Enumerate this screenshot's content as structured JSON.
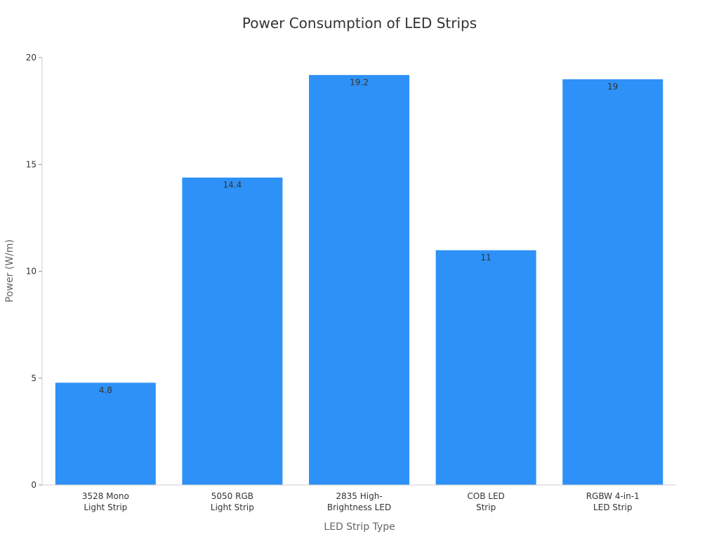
{
  "chart_data": {
    "type": "bar",
    "title": "Power Consumption of LED Strips",
    "xlabel": "LED Strip Type",
    "ylabel": "Power (W/m)",
    "ylim": [
      0,
      20
    ],
    "yticks": [
      0,
      5,
      10,
      15,
      20
    ],
    "categories": [
      [
        "3528 Mono",
        "Light Strip"
      ],
      [
        "5050 RGB",
        "Light Strip"
      ],
      [
        "2835 High-",
        "Brightness LED"
      ],
      [
        "COB LED",
        "Strip"
      ],
      [
        "RGBW 4-in-1",
        "LED Strip"
      ]
    ],
    "values": [
      4.8,
      14.4,
      19.2,
      11,
      19
    ],
    "data_labels": [
      "4.8",
      "14.4",
      "19.2",
      "11",
      "19"
    ],
    "grid": false,
    "legend": "none",
    "bar_color": "#2e91f8"
  }
}
